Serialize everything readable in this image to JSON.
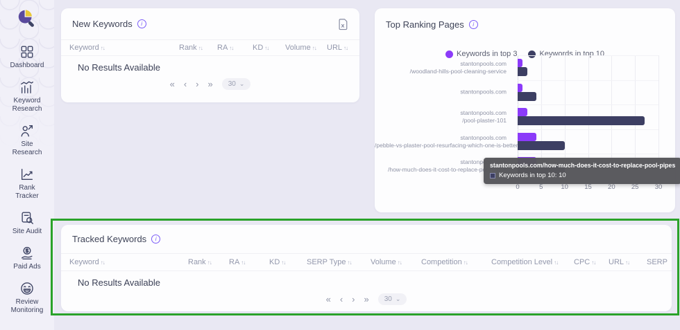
{
  "sidebar": {
    "items": [
      {
        "label": "Dashboard",
        "icon": "dashboard-icon"
      },
      {
        "label": "Keyword Research",
        "icon": "keyword-research-icon"
      },
      {
        "label": "Site Research",
        "icon": "site-research-icon"
      },
      {
        "label": "Rank Tracker",
        "icon": "rank-tracker-icon"
      },
      {
        "label": "Site Audit",
        "icon": "site-audit-icon"
      },
      {
        "label": "Paid Ads",
        "icon": "paid-ads-icon"
      },
      {
        "label": "Review Monitoring",
        "icon": "review-monitoring-icon"
      }
    ]
  },
  "ui": {
    "sort_icon": "↑↓",
    "info_icon": "i",
    "pagination": {
      "first": "«",
      "prev": "‹",
      "next": "›",
      "last": "»",
      "page_size": "30",
      "chevron": "⌄"
    }
  },
  "new_keywords": {
    "title": "New Keywords",
    "columns": [
      {
        "label": "Keyword",
        "sortable": true
      },
      {
        "label": "Rank",
        "sortable": true
      },
      {
        "label": "RA",
        "sortable": true
      },
      {
        "label": "KD",
        "sortable": true
      },
      {
        "label": "Volume",
        "sortable": true
      },
      {
        "label": "URL",
        "sortable": true
      }
    ],
    "empty_text": "No Results Available"
  },
  "top_ranking_pages": {
    "title": "Top Ranking Pages",
    "tooltip": {
      "title": "stantonpools.com/how-much-does-it-cost-to-replace-pool-pipes",
      "label": "Keywords in top 10: 10"
    }
  },
  "chart_data": {
    "type": "bar",
    "orientation": "horizontal",
    "title": "Top Ranking Pages",
    "categories": [
      [
        "stantonpools.com",
        "/woodland-hills-pool-cleaning-service"
      ],
      [
        "stantonpools.com"
      ],
      [
        "stantonpools.com",
        "/pool-plaster-101"
      ],
      [
        "stantonpools.com",
        "/pebble-vs-plaster-pool-resurfacing-which-one-is-better"
      ],
      [
        "stantonpools.com",
        "/how-much-does-it-cost-to-replace-pool-pipes"
      ]
    ],
    "series": [
      {
        "name": "Keywords in top 3",
        "color": "#8c3bf9",
        "values": [
          1,
          1,
          2,
          4,
          4
        ]
      },
      {
        "name": "Keywords in top 10",
        "color": "#3d3f63",
        "values": [
          2,
          4,
          27,
          10,
          10
        ]
      }
    ],
    "xlim": [
      0,
      30
    ],
    "xticks": [
      0,
      5,
      10,
      15,
      20,
      25,
      30
    ],
    "grid": true,
    "legend_position": "top"
  },
  "tracked_keywords": {
    "title": "Tracked Keywords",
    "highlight_border_color": "#2aa22a",
    "columns": [
      {
        "label": "Keyword",
        "sortable": true
      },
      {
        "label": "Rank",
        "sortable": true
      },
      {
        "label": "RA",
        "sortable": true
      },
      {
        "label": "KD",
        "sortable": true
      },
      {
        "label": "SERP Type",
        "sortable": true
      },
      {
        "label": "Volume",
        "sortable": true
      },
      {
        "label": "Competition",
        "sortable": true
      },
      {
        "label": "Competition Level",
        "sortable": true
      },
      {
        "label": "CPC",
        "sortable": true
      },
      {
        "label": "URL",
        "sortable": true
      },
      {
        "label": "SERP",
        "sortable": false
      }
    ],
    "empty_text": "No Results Available"
  }
}
